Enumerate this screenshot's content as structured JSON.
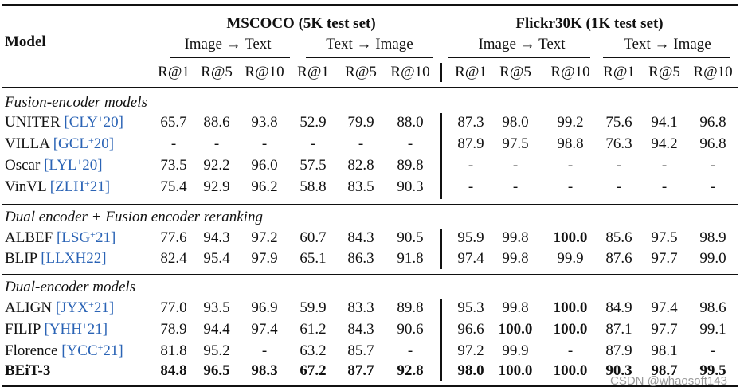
{
  "header": {
    "model_label": "Model",
    "datasets": [
      {
        "name": "MSCOCO (5K test set)"
      },
      {
        "name": "Flickr30K (1K test set)"
      }
    ],
    "directions": [
      "Image → Text",
      "Text → Image",
      "Image → Text",
      "Text → Image"
    ],
    "metrics": [
      "R@1",
      "R@5",
      "R@10",
      "R@1",
      "R@5",
      "R@10",
      "R@1",
      "R@5",
      "R@10",
      "R@1",
      "R@5",
      "R@10"
    ]
  },
  "groups": [
    {
      "title": "Fusion-encoder models",
      "rows": [
        {
          "model": "UNITER",
          "cite": "[CLY",
          "sup": "+",
          "cite_end": "20]",
          "values": [
            "65.7",
            "88.6",
            "93.8",
            "52.9",
            "79.9",
            "88.0",
            "87.3",
            "98.0",
            "99.2",
            "75.6",
            "94.1",
            "96.8"
          ],
          "bold": []
        },
        {
          "model": "VILLA",
          "cite": "[GCL",
          "sup": "+",
          "cite_end": "20]",
          "values": [
            "-",
            "-",
            "-",
            "-",
            "-",
            "-",
            "87.9",
            "97.5",
            "98.8",
            "76.3",
            "94.2",
            "96.8"
          ],
          "bold": []
        },
        {
          "model": "Oscar",
          "cite": "[LYL",
          "sup": "+",
          "cite_end": "20]",
          "values": [
            "73.5",
            "92.2",
            "96.0",
            "57.5",
            "82.8",
            "89.8",
            "-",
            "-",
            "-",
            "-",
            "-",
            "-"
          ],
          "bold": []
        },
        {
          "model": "VinVL",
          "cite": "[ZLH",
          "sup": "+",
          "cite_end": "21]",
          "values": [
            "75.4",
            "92.9",
            "96.2",
            "58.8",
            "83.5",
            "90.3",
            "-",
            "-",
            "-",
            "-",
            "-",
            "-"
          ],
          "bold": []
        }
      ]
    },
    {
      "title": "Dual encoder + Fusion encoder reranking",
      "rows": [
        {
          "model": "ALBEF",
          "cite": "[LSG",
          "sup": "+",
          "cite_end": "21]",
          "values": [
            "77.6",
            "94.3",
            "97.2",
            "60.7",
            "84.3",
            "90.5",
            "95.9",
            "99.8",
            "100.0",
            "85.6",
            "97.5",
            "98.9"
          ],
          "bold": [
            8
          ]
        },
        {
          "model": "BLIP",
          "cite": "[LLXH22]",
          "sup": "",
          "cite_end": "",
          "values": [
            "82.4",
            "95.4",
            "97.9",
            "65.1",
            "86.3",
            "91.8",
            "97.4",
            "99.8",
            "99.9",
            "87.6",
            "97.7",
            "99.0"
          ],
          "bold": []
        }
      ]
    },
    {
      "title": "Dual-encoder models",
      "rows": [
        {
          "model": "ALIGN",
          "cite": "[JYX",
          "sup": "+",
          "cite_end": "21]",
          "values": [
            "77.0",
            "93.5",
            "96.9",
            "59.9",
            "83.3",
            "89.8",
            "95.3",
            "99.8",
            "100.0",
            "84.9",
            "97.4",
            "98.6"
          ],
          "bold": [
            8
          ]
        },
        {
          "model": "FILIP",
          "cite": "[YHH",
          "sup": "+",
          "cite_end": "21]",
          "values": [
            "78.9",
            "94.4",
            "97.4",
            "61.2",
            "84.3",
            "90.6",
            "96.6",
            "100.0",
            "100.0",
            "87.1",
            "97.7",
            "99.1"
          ],
          "bold": [
            7,
            8
          ]
        },
        {
          "model": "Florence",
          "cite": "[YCC",
          "sup": "+",
          "cite_end": "21]",
          "values": [
            "81.8",
            "95.2",
            "-",
            "63.2",
            "85.7",
            "-",
            "97.2",
            "99.9",
            "-",
            "87.9",
            "98.1",
            "-"
          ],
          "bold": []
        },
        {
          "model": "BEiT-3",
          "cite": "",
          "sup": "",
          "cite_end": "",
          "values": [
            "84.8",
            "96.5",
            "98.3",
            "67.2",
            "87.7",
            "92.8",
            "98.0",
            "100.0",
            "100.0",
            "90.3",
            "98.7",
            "99.5"
          ],
          "bold": [
            0,
            1,
            2,
            3,
            4,
            5,
            6,
            7,
            8,
            9,
            10,
            11
          ],
          "model_bold": true
        }
      ]
    }
  ],
  "watermark": "CSDN @whaosoft143"
}
